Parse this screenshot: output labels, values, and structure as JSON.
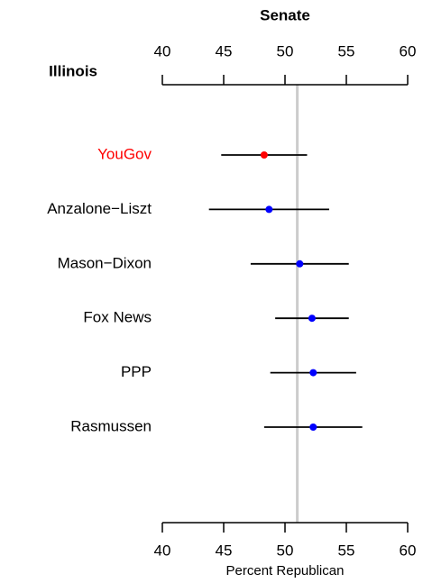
{
  "chart_data": {
    "type": "dotplot",
    "title": "Senate",
    "subtitle": "Illinois",
    "categories": [
      "YouGov",
      "Anzalone−Liszt",
      "Mason−Dixon",
      "Fox News",
      "PPP",
      "Rasmussen"
    ],
    "values": [
      48.3,
      48.7,
      51.2,
      52.2,
      52.3,
      52.3
    ],
    "errors": [
      3.5,
      4.9,
      4.0,
      3.0,
      3.5,
      4.0
    ],
    "colors": [
      "#ff0000",
      "#0000ff",
      "#0000ff",
      "#0000ff",
      "#0000ff",
      "#0000ff"
    ],
    "reference": 51,
    "reference_color": "#cccccc",
    "xlim": [
      40,
      60
    ],
    "xticks": [
      40,
      45,
      50,
      55,
      60
    ],
    "xlabel": "Percent Republican"
  }
}
